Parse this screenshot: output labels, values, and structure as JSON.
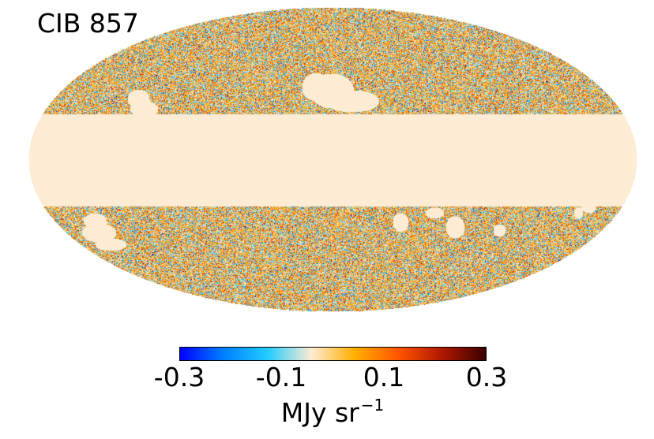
{
  "map": {
    "title": "CIB 857",
    "projection": "mollweide",
    "masked_fill_color": "#fdebd3"
  },
  "colorbar": {
    "min": -0.3,
    "max": 0.3,
    "ticks": [
      "-0.3",
      "-0.1",
      "0.1",
      "0.3"
    ],
    "unit_base": "MJy sr",
    "unit_exponent": "−1",
    "colormap": [
      "#0000ff",
      "#0080ff",
      "#22ccff",
      "#fdebd3",
      "#ffb000",
      "#ff5500",
      "#b01800",
      "#3a0000"
    ]
  }
}
